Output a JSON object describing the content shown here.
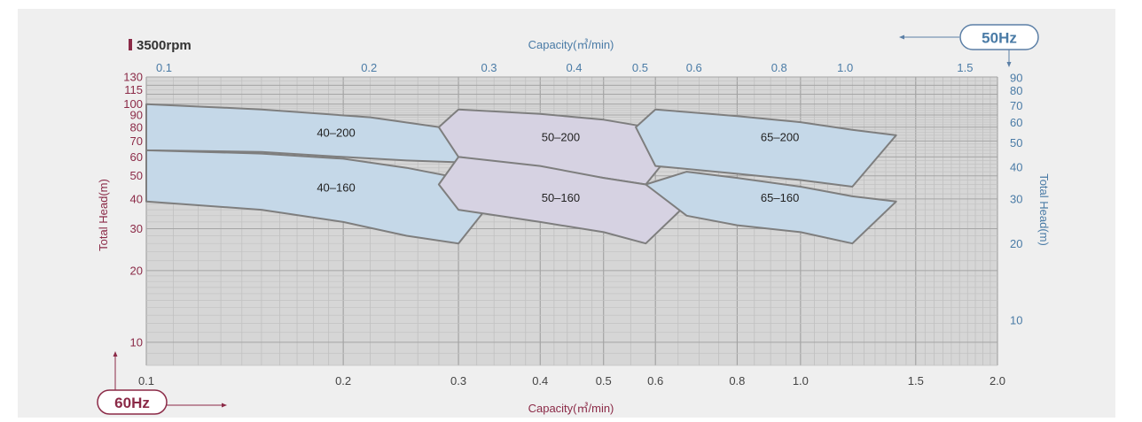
{
  "chart_data": {
    "type": "area",
    "speed_label": "3500rpm",
    "x_scale": "log",
    "y_scale": "log",
    "hz60": {
      "badge": "60Hz",
      "xlabel": "Capacity(㎥/min)",
      "ylabel": "Total Head(m)",
      "xlim": [
        0.1,
        2.0
      ],
      "ylim": [
        8,
        130
      ],
      "xticks": [
        0.1,
        0.2,
        0.3,
        0.4,
        0.5,
        0.6,
        0.8,
        1.0,
        1.5,
        2.0
      ],
      "xtick_labels": [
        "0.1",
        "0.2",
        "0.3",
        "0.4",
        "0.5",
        "0.6",
        "0.8",
        "1.0",
        "1.5",
        "2.0"
      ],
      "yticks": [
        10,
        20,
        30,
        40,
        50,
        60,
        70,
        80,
        90,
        100,
        115,
        130
      ],
      "ytick_labels": [
        "10",
        "20",
        "30",
        "40",
        "50",
        "60",
        "70",
        "80",
        "90",
        "100",
        "115",
        "130"
      ]
    },
    "hz50": {
      "badge": "50Hz",
      "xlabel": "Capacity(㎥/min)",
      "ylabel": "Total Head(m)",
      "xticks": [
        0.1,
        0.2,
        0.3,
        0.4,
        0.5,
        0.6,
        0.8,
        1.0,
        1.5
      ],
      "xtick_labels": [
        "0.1",
        "0.2",
        "0.3",
        "0.4",
        "0.5",
        "0.6",
        "0.8",
        "1.0",
        "1.5"
      ],
      "yticks": [
        10,
        20,
        30,
        40,
        50,
        60,
        70,
        80,
        90
      ],
      "ytick_labels": [
        "10",
        "20",
        "30",
        "40",
        "50",
        "60",
        "70",
        "80",
        "90"
      ]
    },
    "series": [
      {
        "name": "40-200",
        "label_at": [
          0.195,
          73
        ],
        "color": "#c5d8e8",
        "polygon": [
          [
            0.1,
            100
          ],
          [
            0.15,
            95
          ],
          [
            0.22,
            88
          ],
          [
            0.29,
            79
          ],
          [
            0.35,
            74
          ],
          [
            0.3,
            57
          ],
          [
            0.25,
            58
          ],
          [
            0.2,
            60
          ],
          [
            0.15,
            63
          ],
          [
            0.1,
            64
          ]
        ]
      },
      {
        "name": "40-160",
        "label_at": [
          0.195,
          43
        ],
        "color": "#c5d8e8",
        "polygon": [
          [
            0.1,
            64
          ],
          [
            0.15,
            62
          ],
          [
            0.2,
            59
          ],
          [
            0.25,
            54
          ],
          [
            0.3,
            49
          ],
          [
            0.34,
            40
          ],
          [
            0.3,
            26
          ],
          [
            0.25,
            28
          ],
          [
            0.2,
            32
          ],
          [
            0.15,
            36
          ],
          [
            0.1,
            39
          ]
        ]
      },
      {
        "name": "50-200",
        "label_at": [
          0.43,
          70
        ],
        "color": "#d6d2e2",
        "polygon": [
          [
            0.28,
            80
          ],
          [
            0.3,
            95
          ],
          [
            0.4,
            91
          ],
          [
            0.5,
            86
          ],
          [
            0.6,
            79
          ],
          [
            0.67,
            75
          ],
          [
            0.58,
            46
          ],
          [
            0.5,
            49
          ],
          [
            0.4,
            54
          ],
          [
            0.3,
            60
          ]
        ]
      },
      {
        "name": "50-160",
        "label_at": [
          0.43,
          39
        ],
        "color": "#d6d2e2",
        "polygon": [
          [
            0.28,
            46
          ],
          [
            0.3,
            60
          ],
          [
            0.4,
            55
          ],
          [
            0.5,
            49
          ],
          [
            0.58,
            46
          ],
          [
            0.67,
            38
          ],
          [
            0.58,
            26
          ],
          [
            0.5,
            29
          ],
          [
            0.4,
            32
          ],
          [
            0.3,
            36
          ]
        ]
      },
      {
        "name": "65-200",
        "label_at": [
          0.93,
          70
        ],
        "color": "#c5d8e8",
        "polygon": [
          [
            0.56,
            80
          ],
          [
            0.6,
            95
          ],
          [
            0.8,
            89
          ],
          [
            1.0,
            84
          ],
          [
            1.2,
            78
          ],
          [
            1.4,
            74
          ],
          [
            1.2,
            45
          ],
          [
            1.0,
            48
          ],
          [
            0.8,
            51
          ],
          [
            0.6,
            55
          ]
        ]
      },
      {
        "name": "65-160",
        "label_at": [
          0.93,
          39
        ],
        "color": "#c5d8e8",
        "polygon": [
          [
            0.58,
            46
          ],
          [
            0.67,
            52
          ],
          [
            0.8,
            49
          ],
          [
            1.0,
            45
          ],
          [
            1.2,
            41
          ],
          [
            1.4,
            39
          ],
          [
            1.2,
            26
          ],
          [
            1.0,
            29
          ],
          [
            0.8,
            31
          ],
          [
            0.67,
            34
          ]
        ]
      }
    ]
  }
}
